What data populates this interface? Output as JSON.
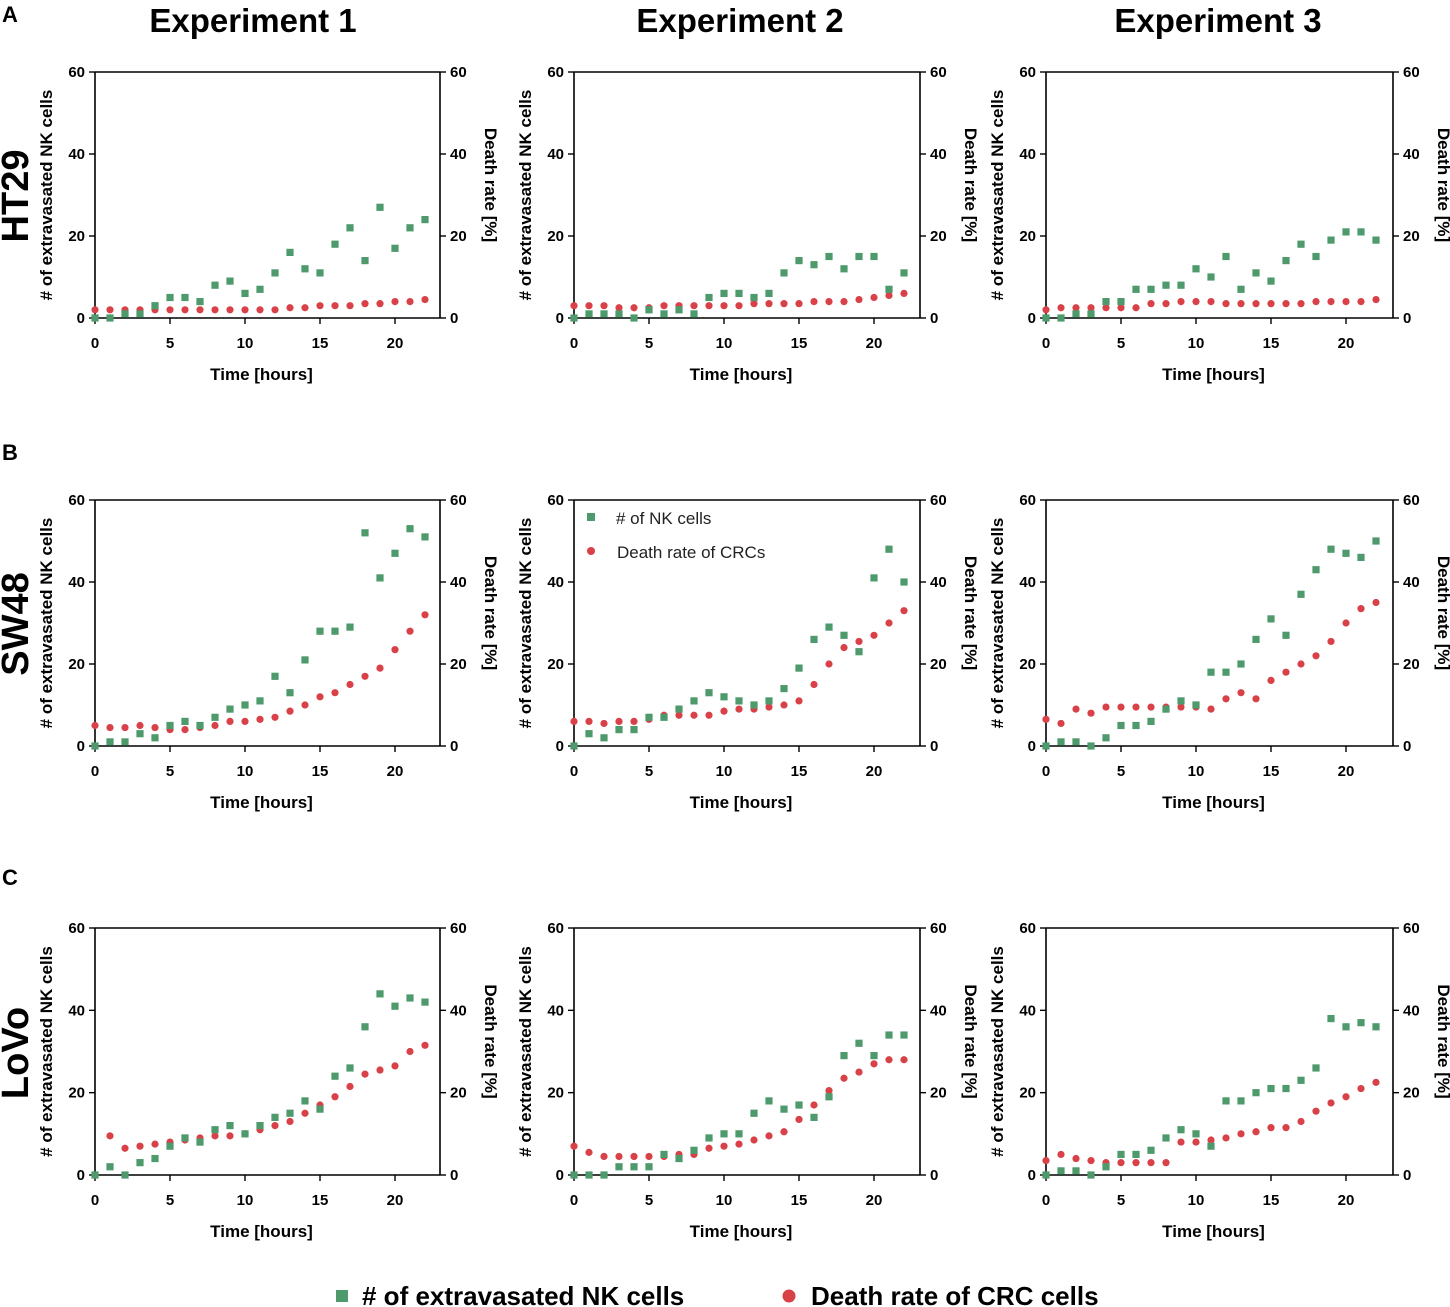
{
  "colors": {
    "nk": "#4e9a6c",
    "death": "#d94148"
  },
  "columns": [
    "Experiment 1",
    "Experiment 2",
    "Experiment 3"
  ],
  "rows": [
    {
      "letter": "A",
      "label": "HT29"
    },
    {
      "letter": "B",
      "label": "SW48"
    },
    {
      "letter": "C",
      "label": "LoVo"
    }
  ],
  "axes": {
    "xlabel": "Time [hours]",
    "ylabel_left": "# of extravasated NK cells",
    "ylabel_right": "Death rate [%]",
    "xticks": [
      "0",
      "5",
      "10",
      "15",
      "20"
    ],
    "yticks": [
      "0",
      "20",
      "40",
      "60"
    ]
  },
  "inset_legend": {
    "nk": "# of NK cells",
    "death": "Death rate of CRCs"
  },
  "legend": {
    "nk": "# of extravasated NK cells",
    "death": "Death rate of CRC cells"
  },
  "chart_data": [
    {
      "type": "scatter",
      "row": "HT29",
      "column": "Experiment 1",
      "xlabel": "Time [hours]",
      "ylabel": "# of extravasated NK cells",
      "y2label": "Death rate [%]",
      "xlim": [
        0,
        23
      ],
      "ylim": [
        0,
        60
      ],
      "y2lim": [
        0,
        60
      ],
      "x": [
        0,
        1,
        2,
        3,
        4,
        5,
        6,
        7,
        8,
        9,
        10,
        11,
        12,
        13,
        14,
        15,
        16,
        17,
        18,
        19,
        20,
        21,
        22
      ],
      "series": [
        {
          "name": "# of extravasated NK cells",
          "values": [
            0,
            0,
            1,
            1,
            3,
            5,
            5,
            4,
            8,
            9,
            6,
            7,
            11,
            16,
            12,
            11,
            18,
            22,
            14,
            27,
            17,
            22,
            24
          ]
        },
        {
          "name": "Death rate of CRC cells",
          "values": [
            2,
            2,
            2,
            2,
            2,
            2,
            2,
            2,
            2,
            2,
            2,
            2,
            2,
            2.5,
            2.5,
            3,
            3,
            3,
            3.5,
            3.5,
            4,
            4,
            4.5
          ]
        }
      ]
    },
    {
      "type": "scatter",
      "row": "HT29",
      "column": "Experiment 2",
      "xlabel": "Time [hours]",
      "ylabel": "# of extravasated NK cells",
      "y2label": "Death rate [%]",
      "xlim": [
        0,
        23
      ],
      "ylim": [
        0,
        60
      ],
      "y2lim": [
        0,
        60
      ],
      "x": [
        0,
        1,
        2,
        3,
        4,
        5,
        6,
        7,
        8,
        9,
        10,
        11,
        12,
        13,
        14,
        15,
        16,
        17,
        18,
        19,
        20,
        21,
        22
      ],
      "series": [
        {
          "name": "# of extravasated NK cells",
          "values": [
            0,
            1,
            1,
            1,
            0,
            2,
            1,
            2,
            1,
            5,
            6,
            6,
            5,
            6,
            11,
            14,
            13,
            15,
            12,
            15,
            15,
            7,
            11
          ]
        },
        {
          "name": "Death rate of CRC cells",
          "values": [
            3,
            3,
            3,
            2.5,
            2.5,
            2.5,
            3,
            3,
            3,
            3,
            3,
            3,
            3.5,
            3.5,
            3.5,
            3.5,
            4,
            4,
            4,
            4.5,
            5,
            5.5,
            6
          ]
        }
      ]
    },
    {
      "type": "scatter",
      "row": "HT29",
      "column": "Experiment 3",
      "xlabel": "Time [hours]",
      "ylabel": "# of extravasated NK cells",
      "y2label": "Death rate [%]",
      "xlim": [
        0,
        23
      ],
      "ylim": [
        0,
        60
      ],
      "y2lim": [
        0,
        60
      ],
      "x": [
        0,
        1,
        2,
        3,
        4,
        5,
        6,
        7,
        8,
        9,
        10,
        11,
        12,
        13,
        14,
        15,
        16,
        17,
        18,
        19,
        20,
        21,
        22
      ],
      "series": [
        {
          "name": "# of extravasated NK cells",
          "values": [
            0,
            0,
            1,
            1,
            4,
            4,
            7,
            7,
            8,
            8,
            12,
            10,
            15,
            7,
            11,
            9,
            14,
            18,
            15,
            19,
            21,
            21,
            19
          ]
        },
        {
          "name": "Death rate of CRC cells",
          "values": [
            2,
            2.5,
            2.5,
            2.5,
            2.5,
            2.5,
            2.5,
            3.5,
            3.5,
            4,
            4,
            4,
            3.5,
            3.5,
            3.5,
            3.5,
            3.5,
            3.5,
            4,
            4,
            4,
            4,
            4.5
          ]
        }
      ]
    },
    {
      "type": "scatter",
      "row": "SW48",
      "column": "Experiment 1",
      "xlabel": "Time [hours]",
      "ylabel": "# of extravasated NK cells",
      "y2label": "Death rate [%]",
      "xlim": [
        0,
        23
      ],
      "ylim": [
        0,
        60
      ],
      "y2lim": [
        0,
        60
      ],
      "x": [
        0,
        1,
        2,
        3,
        4,
        5,
        6,
        7,
        8,
        9,
        10,
        11,
        12,
        13,
        14,
        15,
        16,
        17,
        18,
        19,
        20,
        21,
        22
      ],
      "series": [
        {
          "name": "# of extravasated NK cells",
          "values": [
            0,
            1,
            1,
            3,
            2,
            5,
            6,
            5,
            7,
            9,
            10,
            11,
            17,
            13,
            21,
            28,
            28,
            29,
            52,
            41,
            47,
            53,
            51
          ]
        },
        {
          "name": "Death rate of CRC cells",
          "values": [
            5,
            4.5,
            4.5,
            5,
            4.5,
            4,
            4,
            4.5,
            5,
            6,
            6,
            6.5,
            7,
            8.5,
            10,
            12,
            13,
            15,
            17,
            19,
            23.5,
            28,
            32
          ]
        }
      ]
    },
    {
      "type": "scatter",
      "row": "SW48",
      "column": "Experiment 2",
      "xlabel": "Time [hours]",
      "ylabel": "# of extravasated NK cells",
      "y2label": "Death rate [%]",
      "xlim": [
        0,
        23
      ],
      "ylim": [
        0,
        60
      ],
      "y2lim": [
        0,
        60
      ],
      "x": [
        0,
        1,
        2,
        3,
        4,
        5,
        6,
        7,
        8,
        9,
        10,
        11,
        12,
        13,
        14,
        15,
        16,
        17,
        18,
        19,
        20,
        21,
        22
      ],
      "series": [
        {
          "name": "# of extravasated NK cells",
          "values": [
            0,
            3,
            2,
            4,
            4,
            7,
            7,
            9,
            11,
            13,
            12,
            11,
            10,
            11,
            14,
            19,
            26,
            29,
            27,
            23,
            41,
            48,
            40
          ]
        },
        {
          "name": "Death rate of CRC cells",
          "values": [
            6,
            6,
            5.5,
            6,
            6,
            6.5,
            7.5,
            7.5,
            7.5,
            7.5,
            8.5,
            9,
            9,
            9.5,
            10,
            11,
            15,
            20,
            24,
            25.5,
            27,
            30,
            33
          ]
        }
      ]
    },
    {
      "type": "scatter",
      "row": "SW48",
      "column": "Experiment 3",
      "xlabel": "Time [hours]",
      "ylabel": "# of extravasated NK cells",
      "y2label": "Death rate [%]",
      "xlim": [
        0,
        23
      ],
      "ylim": [
        0,
        60
      ],
      "y2lim": [
        0,
        60
      ],
      "x": [
        0,
        1,
        2,
        3,
        4,
        5,
        6,
        7,
        8,
        9,
        10,
        11,
        12,
        13,
        14,
        15,
        16,
        17,
        18,
        19,
        20,
        21,
        22
      ],
      "series": [
        {
          "name": "# of extravasated NK cells",
          "values": [
            0,
            1,
            1,
            0,
            2,
            5,
            5,
            6,
            9,
            11,
            10,
            18,
            18,
            20,
            26,
            31,
            27,
            37,
            43,
            48,
            47,
            46,
            50
          ]
        },
        {
          "name": "Death rate of CRC cells",
          "values": [
            6.5,
            5.5,
            9,
            8,
            9.5,
            9.5,
            9.5,
            9.5,
            9.5,
            9.5,
            9.5,
            9,
            11.5,
            13,
            11.5,
            16,
            18,
            20,
            22,
            25.5,
            30,
            33.5,
            35
          ]
        }
      ]
    },
    {
      "type": "scatter",
      "row": "LoVo",
      "column": "Experiment 1",
      "xlabel": "Time [hours]",
      "ylabel": "# of extravasated NK cells",
      "y2label": "Death rate [%]",
      "xlim": [
        0,
        23
      ],
      "ylim": [
        0,
        60
      ],
      "y2lim": [
        0,
        60
      ],
      "x": [
        0,
        1,
        2,
        3,
        4,
        5,
        6,
        7,
        8,
        9,
        10,
        11,
        12,
        13,
        14,
        15,
        16,
        17,
        18,
        19,
        20,
        21,
        22
      ],
      "series": [
        {
          "name": "# of extravasated NK cells",
          "values": [
            0,
            2,
            0,
            3,
            4,
            7,
            9,
            8,
            11,
            12,
            10,
            12,
            14,
            15,
            18,
            16,
            24,
            26,
            36,
            44,
            41,
            43,
            42
          ]
        },
        {
          "name": "Death rate of CRC cells",
          "values": [
            null,
            9.5,
            6.5,
            7,
            7.5,
            8,
            8.5,
            9,
            9.5,
            9.5,
            10,
            11,
            12,
            13,
            15,
            17,
            19,
            21.5,
            24.5,
            25.5,
            26.5,
            30,
            31.5
          ]
        }
      ]
    },
    {
      "type": "scatter",
      "row": "LoVo",
      "column": "Experiment 2",
      "xlabel": "Time [hours]",
      "ylabel": "# of extravasated NK cells",
      "y2label": "Death rate [%]",
      "xlim": [
        0,
        23
      ],
      "ylim": [
        0,
        60
      ],
      "y2lim": [
        0,
        60
      ],
      "x": [
        0,
        1,
        2,
        3,
        4,
        5,
        6,
        7,
        8,
        9,
        10,
        11,
        12,
        13,
        14,
        15,
        16,
        17,
        18,
        19,
        20,
        21,
        22
      ],
      "series": [
        {
          "name": "# of extravasated NK cells",
          "values": [
            0,
            0,
            0,
            2,
            2,
            2,
            5,
            4,
            6,
            9,
            10,
            10,
            15,
            18,
            16,
            17,
            14,
            19,
            29,
            32,
            29,
            34,
            34
          ]
        },
        {
          "name": "Death rate of CRC cells",
          "values": [
            7,
            5.5,
            4.5,
            4.5,
            4.5,
            4.5,
            4.5,
            5,
            5,
            6.5,
            7,
            7.5,
            8.5,
            9.5,
            10.5,
            13.5,
            17,
            20.5,
            23.5,
            25,
            27,
            28,
            28
          ]
        }
      ]
    },
    {
      "type": "scatter",
      "row": "LoVo",
      "column": "Experiment 3",
      "xlabel": "Time [hours]",
      "ylabel": "# of extravasated NK cells",
      "y2label": "Death rate [%]",
      "xlim": [
        0,
        23
      ],
      "ylim": [
        0,
        60
      ],
      "y2lim": [
        0,
        60
      ],
      "x": [
        0,
        1,
        2,
        3,
        4,
        5,
        6,
        7,
        8,
        9,
        10,
        11,
        12,
        13,
        14,
        15,
        16,
        17,
        18,
        19,
        20,
        21,
        22
      ],
      "series": [
        {
          "name": "# of extravasated NK cells",
          "values": [
            0,
            1,
            1,
            0,
            2,
            5,
            5,
            6,
            9,
            11,
            10,
            7,
            18,
            18,
            20,
            21,
            21,
            23,
            26,
            38,
            36,
            37,
            36
          ]
        },
        {
          "name": "Death rate of CRC cells",
          "values": [
            3.5,
            5,
            4,
            3.5,
            3,
            3,
            3,
            3,
            3,
            8,
            8,
            8.5,
            9,
            10,
            10.5,
            11.5,
            11.5,
            13,
            15.5,
            17.5,
            19,
            21,
            22.5
          ]
        }
      ]
    }
  ]
}
